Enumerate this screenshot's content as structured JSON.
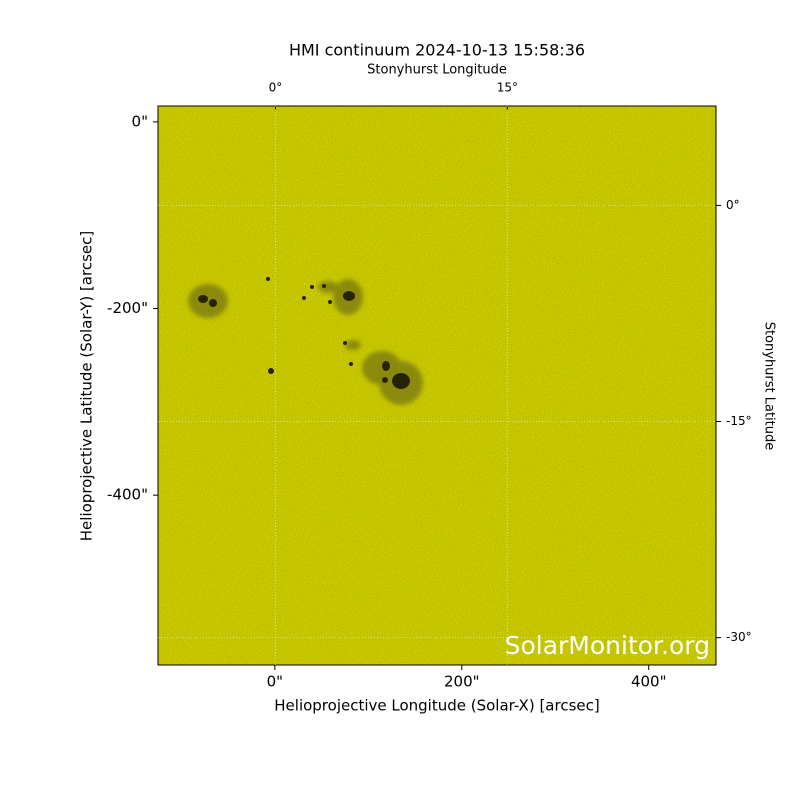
{
  "chart_data": {
    "type": "image",
    "title": "HMI continuum 2024-10-13 15:58:36",
    "xlabel": "Helioprojective Longitude (Solar-X) [arcsec]",
    "ylabel": "Helioprojective Latitude (Solar-Y) [arcsec]",
    "x2label": "Stonyhurst Longitude",
    "y2label": "Stonyhurst Latitude",
    "watermark": "SolarMonitor.org",
    "xlim": [
      -125,
      472
    ],
    "ylim": [
      -582,
      17
    ],
    "xticks": [
      {
        "value": 0,
        "label": "0\""
      },
      {
        "value": 200,
        "label": "200\""
      },
      {
        "value": 400,
        "label": "400\""
      }
    ],
    "yticks": [
      {
        "value": 0,
        "label": "0\""
      },
      {
        "value": -200,
        "label": "-200\""
      },
      {
        "value": -400,
        "label": "-400\""
      }
    ],
    "x2lim": [
      -7.6,
      28.5
    ],
    "x2ticks": [
      {
        "value": 0,
        "label": "0°"
      },
      {
        "value": 15,
        "label": "15°"
      }
    ],
    "y2lim": [
      -31.9,
      6.9
    ],
    "y2ticks": [
      {
        "value": 0,
        "label": "0°"
      },
      {
        "value": -15,
        "label": "-15°"
      },
      {
        "value": -30,
        "label": "-30°"
      }
    ],
    "grid": true,
    "color": "#cccc00"
  }
}
